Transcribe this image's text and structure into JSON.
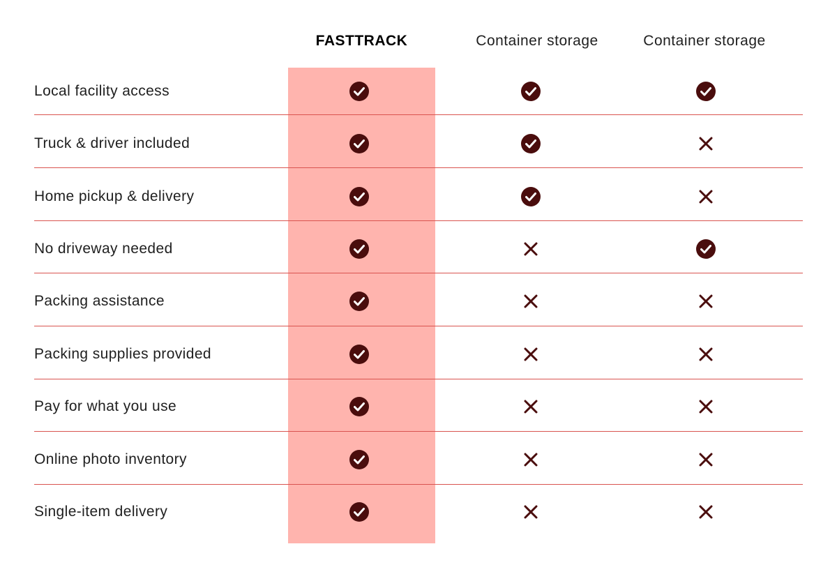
{
  "columns": [
    "FASTTRACK",
    "Container storage",
    "Container storage"
  ],
  "rows": [
    {
      "label": "Local facility access",
      "values": [
        "check",
        "check",
        "check"
      ]
    },
    {
      "label": "Truck & driver included",
      "values": [
        "check",
        "check",
        "cross"
      ]
    },
    {
      "label": "Home pickup & delivery",
      "values": [
        "check",
        "check",
        "cross"
      ]
    },
    {
      "label": "No driveway needed",
      "values": [
        "check",
        "cross",
        "check"
      ]
    },
    {
      "label": "Packing assistance",
      "values": [
        "check",
        "cross",
        "cross"
      ]
    },
    {
      "label": "Packing supplies provided",
      "values": [
        "check",
        "cross",
        "cross"
      ]
    },
    {
      "label": "Pay for what you use",
      "values": [
        "check",
        "cross",
        "cross"
      ]
    },
    {
      "label": "Online photo inventory",
      "values": [
        "check",
        "cross",
        "cross"
      ]
    },
    {
      "label": "Single-item delivery",
      "values": [
        "check",
        "cross",
        "cross"
      ]
    }
  ],
  "icons": {
    "check": "check-circle-icon",
    "cross": "cross-icon"
  },
  "colors": {
    "highlight": "#ffb4ae",
    "icon": "#4a0d0d",
    "divider": "#d9534f"
  }
}
